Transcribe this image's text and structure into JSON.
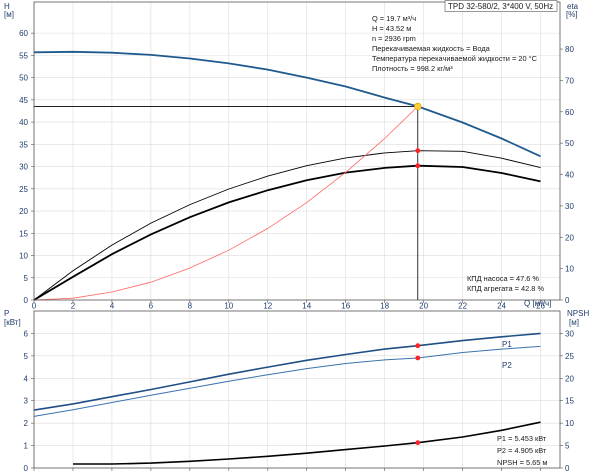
{
  "header": {
    "title": "TPD 32-580/2, 3*400 V, 50Hz",
    "right_unit_label": "eta",
    "right_unit": "[%]"
  },
  "info_box": [
    "Q = 19.7 м³/ч",
    "H = 43.52 м",
    "n = 2936 rpm",
    "Перекачиваемая жидкость = Вода",
    "Температура перекачиваемой жидкости = 20 °C",
    "Плотность = 998.2 кг/м³"
  ],
  "efficiency_box": [
    "КПД насоса = 47.6 %",
    "КПД агрегата = 42.8 %"
  ],
  "power_box": [
    "P1 = 5.453 кВт",
    "P2 = 4.905 кВт",
    "NPSH = 5.65 м"
  ],
  "colors": {
    "head_curve": "#1f5a8f",
    "efficiency_curve": "#000000",
    "system_curve": "#ff6666",
    "p1_curve": "#1f4f84",
    "p2_curve": "#3a73ad",
    "npsh_curve": "#000000",
    "marker": "#ff2222",
    "duty_point": "#ffcc33",
    "axis_text": "#1f3d6b"
  },
  "chart_data": [
    {
      "type": "line",
      "panel": "head_efficiency",
      "ylabel": "H",
      "ylabel_unit": "[м]",
      "y2label": "eta",
      "y2label_unit": "[%]",
      "xlabel": "Q [м³/ч]",
      "xlim": [
        0,
        27
      ],
      "ylim": [
        0,
        67
      ],
      "y2lim": [
        0,
        95
      ],
      "x_ticks": [
        0,
        2,
        4,
        6,
        8,
        10,
        12,
        14,
        16,
        18,
        20,
        22,
        24,
        26
      ],
      "y_ticks": [
        0,
        5,
        10,
        15,
        20,
        25,
        30,
        35,
        40,
        45,
        50,
        55,
        60
      ],
      "y2_ticks": [
        0,
        10,
        20,
        30,
        40,
        50,
        60,
        70,
        80
      ],
      "grid": true,
      "series": [
        {
          "key": "head",
          "axis": "left",
          "x": [
            0,
            2,
            4,
            6,
            8,
            10,
            12,
            14,
            16,
            18,
            19.7,
            22,
            24,
            26
          ],
          "values": [
            55.7,
            55.8,
            55.6,
            55.1,
            54.3,
            53.2,
            51.8,
            50.0,
            48.0,
            45.5,
            43.52,
            39.9,
            36.3,
            32.3
          ]
        },
        {
          "key": "eta_pump",
          "axis": "right",
          "x": [
            0,
            2,
            4,
            6,
            8,
            10,
            12,
            14,
            16,
            18,
            19.7,
            22,
            24,
            26
          ],
          "values": [
            0,
            9.3,
            17.5,
            24.5,
            30.4,
            35.4,
            39.5,
            42.8,
            45.3,
            46.9,
            47.6,
            47.4,
            45.2,
            42.2
          ]
        },
        {
          "key": "eta_unit",
          "axis": "right",
          "x": [
            0,
            2,
            4,
            6,
            8,
            10,
            12,
            14,
            16,
            18,
            19.7,
            22,
            24,
            26
          ],
          "values": [
            0,
            7.4,
            14.6,
            20.9,
            26.4,
            31.1,
            35.0,
            38.2,
            40.6,
            42.1,
            42.8,
            42.4,
            40.5,
            37.8
          ]
        },
        {
          "key": "system",
          "axis": "left",
          "x": [
            0,
            2,
            4,
            6,
            8,
            10,
            12,
            14,
            16,
            18,
            19.7
          ],
          "values": [
            0,
            0.4,
            1.8,
            4.0,
            7.2,
            11.2,
            16.1,
            21.9,
            28.7,
            36.3,
            43.52
          ]
        }
      ],
      "duty_point": {
        "x": 19.7,
        "y": 43.52
      },
      "markers": [
        {
          "series": "eta_pump",
          "x": 19.7,
          "y": 47.6
        },
        {
          "series": "eta_unit",
          "x": 19.7,
          "y": 42.8
        }
      ]
    },
    {
      "type": "line",
      "panel": "power_npsh",
      "ylabel": "P",
      "ylabel_unit": "[кВт]",
      "y2label": "NPSH",
      "y2label_unit": "[м]",
      "xlim": [
        0,
        27
      ],
      "ylim": [
        0,
        7
      ],
      "y2lim": [
        0,
        35
      ],
      "y_ticks": [
        0,
        1,
        2,
        3,
        4,
        5,
        6
      ],
      "y2_ticks": [
        0,
        5,
        10,
        15,
        20,
        25,
        30
      ],
      "grid": true,
      "series": [
        {
          "key": "p1",
          "name": "P1",
          "axis": "left",
          "x": [
            0,
            2,
            4,
            6,
            8,
            10,
            12,
            14,
            16,
            18,
            19.7,
            22,
            24,
            26
          ],
          "values": [
            2.58,
            2.86,
            3.18,
            3.5,
            3.84,
            4.18,
            4.5,
            4.8,
            5.06,
            5.3,
            5.453,
            5.68,
            5.85,
            6.0
          ]
        },
        {
          "key": "p2",
          "name": "P2",
          "axis": "left",
          "x": [
            0,
            2,
            4,
            6,
            8,
            10,
            12,
            14,
            16,
            18,
            19.7,
            22,
            24,
            26
          ],
          "values": [
            2.3,
            2.6,
            2.92,
            3.24,
            3.56,
            3.87,
            4.16,
            4.43,
            4.66,
            4.82,
            4.905,
            5.15,
            5.3,
            5.42
          ]
        },
        {
          "key": "npsh",
          "axis": "right",
          "x": [
            2,
            4,
            6,
            8,
            10,
            12,
            14,
            16,
            18,
            19.7,
            22,
            24,
            26
          ],
          "values": [
            0.9,
            0.9,
            1.1,
            1.5,
            2.0,
            2.6,
            3.3,
            4.1,
            4.9,
            5.65,
            6.9,
            8.4,
            10.2
          ]
        }
      ],
      "markers": [
        {
          "series": "p1",
          "x": 19.7,
          "y": 5.453
        },
        {
          "series": "p2",
          "x": 19.7,
          "y": 4.905
        },
        {
          "series": "npsh",
          "x": 19.7,
          "y": 5.65
        }
      ]
    }
  ]
}
